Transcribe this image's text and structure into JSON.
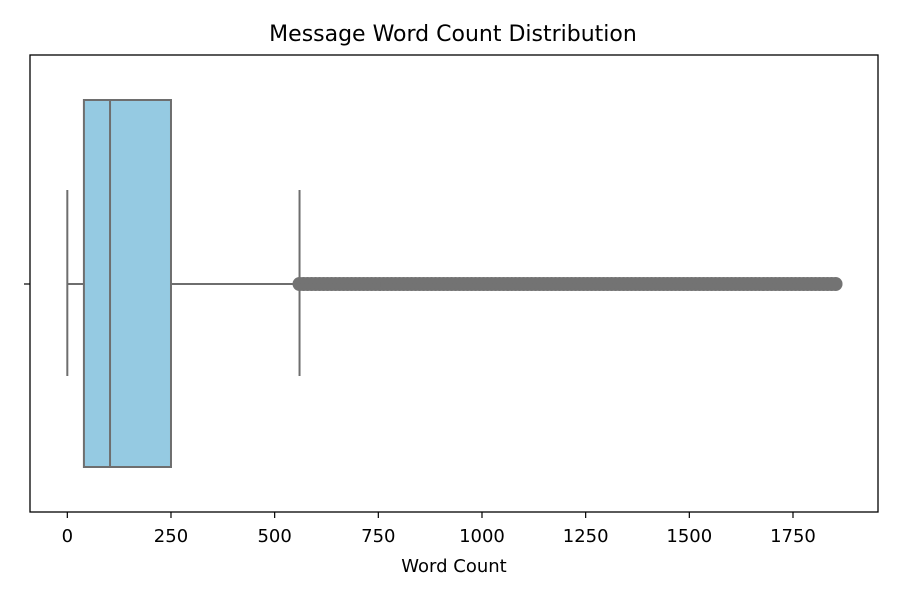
{
  "chart_data": {
    "type": "boxplot",
    "title": "Message Word Count Distribution",
    "xlabel": "Word Count",
    "ylabel": "",
    "xlim": [
      -90,
      1955
    ],
    "xticks": [
      0,
      250,
      500,
      750,
      1000,
      1250,
      1500,
      1750
    ],
    "xtick_labels": [
      "0",
      "250",
      "500",
      "750",
      "1000",
      "1250",
      "1500",
      "1750"
    ],
    "grid": false,
    "box": {
      "whisker_low": 0,
      "q1": 40,
      "median": 103,
      "q3": 250,
      "whisker_high": 560,
      "outlier_range": [
        560,
        1860
      ]
    },
    "colors": {
      "box_fill": "#95cae2",
      "line": "#6e6e6e",
      "outlier": "#737373",
      "frame": "#000000"
    }
  }
}
